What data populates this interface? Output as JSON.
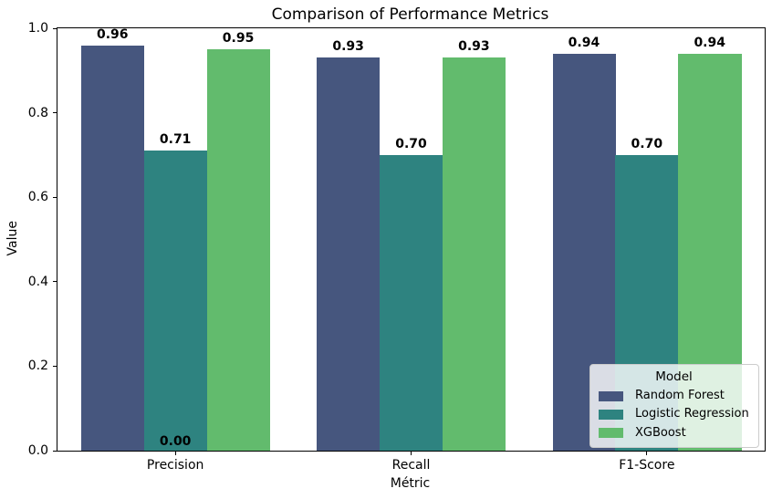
{
  "chart_data": {
    "type": "bar",
    "title": "Comparison of Performance Metrics",
    "xlabel": "Métric",
    "ylabel": "Value",
    "categories": [
      "Precision",
      "Recall",
      "F1-Score"
    ],
    "series": [
      {
        "name": "Random Forest",
        "color": "#46567e",
        "values": [
          0.96,
          0.93,
          0.94
        ],
        "labels": [
          "0.96",
          "0.93",
          "0.94"
        ]
      },
      {
        "name": "Logistic Regression",
        "color": "#2e8380",
        "values": [
          0.71,
          0.7,
          0.7
        ],
        "labels": [
          "0.71",
          "0.70",
          "0.70"
        ]
      },
      {
        "name": "XGBoost",
        "color": "#62bb6d",
        "values": [
          0.95,
          0.93,
          0.94
        ],
        "labels": [
          "0.95",
          "0.93",
          "0.94"
        ]
      }
    ],
    "annotations": [
      {
        "text": "0.00",
        "category_index": 0,
        "series_index": 1
      }
    ],
    "ylim": [
      0.0,
      1.0
    ],
    "yticks": [
      "0.0",
      "0.2",
      "0.4",
      "0.6",
      "0.8",
      "1.0"
    ],
    "grid": false,
    "group_width_fraction": 0.8,
    "legend": {
      "title": "Model",
      "position": "lower-right"
    },
    "colors": {
      "spine": "#000000",
      "text": "#000000",
      "legend_border": "#cccccc"
    }
  }
}
